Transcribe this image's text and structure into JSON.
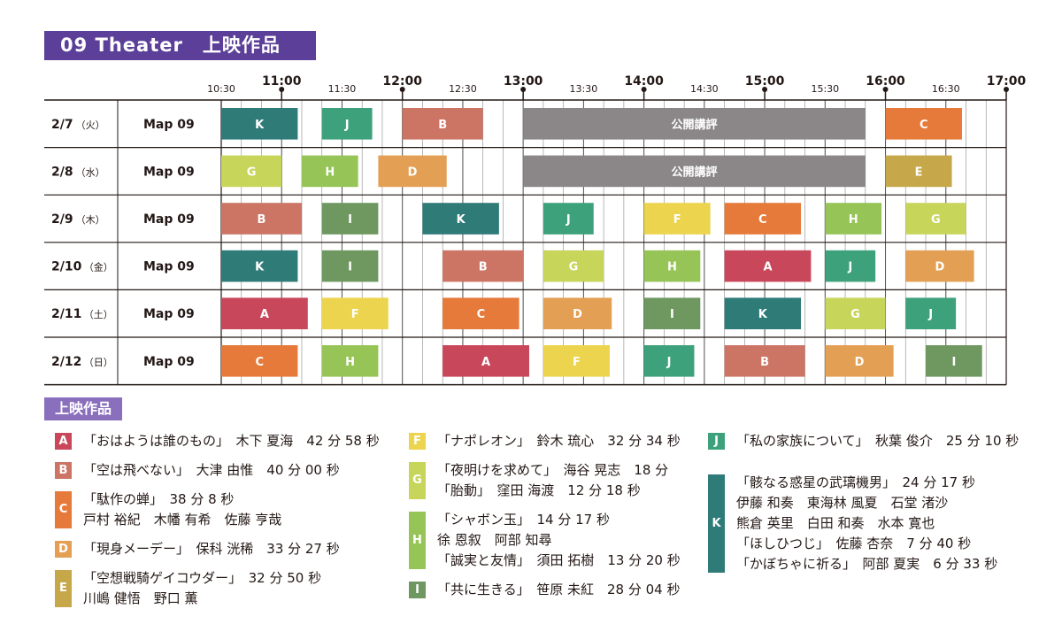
{
  "header": {
    "title": "09 Theater　上映作品"
  },
  "timeline": {
    "ticks": [
      {
        "label": "10:30",
        "major": false
      },
      {
        "label": "11:00",
        "major": true
      },
      {
        "label": "11:30",
        "major": false
      },
      {
        "label": "12:00",
        "major": true
      },
      {
        "label": "12:30",
        "major": false
      },
      {
        "label": "13:00",
        "major": true
      },
      {
        "label": "13:30",
        "major": false
      },
      {
        "label": "14:00",
        "major": true
      },
      {
        "label": "14:30",
        "major": false
      },
      {
        "label": "15:00",
        "major": true
      },
      {
        "label": "15:30",
        "major": false
      },
      {
        "label": "16:00",
        "major": true
      },
      {
        "label": "16:30",
        "major": false
      },
      {
        "label": "17:00",
        "major": true
      }
    ]
  },
  "colors": {
    "A": "#c8475a",
    "B": "#cc7564",
    "C": "#e57a3a",
    "D": "#e3a055",
    "E": "#c6a74a",
    "F": "#ecd44e",
    "G": "#c7d55a",
    "H": "#96c457",
    "I": "#6e9860",
    "J": "#3da27b",
    "K": "#2f7b78",
    "review": "#8b8788"
  },
  "days": [
    {
      "date": "2/7",
      "dow": "（火）",
      "venue": "Map 09",
      "blocks": [
        {
          "label": "K",
          "start": "10:30",
          "end": "11:08"
        },
        {
          "label": "J",
          "start": "11:20",
          "end": "11:45"
        },
        {
          "label": "B",
          "start": "12:00",
          "end": "12:40"
        },
        {
          "label": "公開講評",
          "start": "13:00",
          "end": "15:50",
          "color": "review"
        },
        {
          "label": "C",
          "start": "16:00",
          "end": "16:38"
        }
      ]
    },
    {
      "date": "2/8",
      "dow": "（水）",
      "venue": "Map 09",
      "blocks": [
        {
          "label": "G",
          "start": "10:30",
          "end": "11:00"
        },
        {
          "label": "H",
          "start": "11:10",
          "end": "11:38"
        },
        {
          "label": "D",
          "start": "11:48",
          "end": "12:22"
        },
        {
          "label": "公開講評",
          "start": "13:00",
          "end": "15:50",
          "color": "review"
        },
        {
          "label": "E",
          "start": "16:00",
          "end": "16:33"
        }
      ]
    },
    {
      "date": "2/9",
      "dow": "（木）",
      "venue": "Map 09",
      "blocks": [
        {
          "label": "B",
          "start": "10:30",
          "end": "11:10"
        },
        {
          "label": "I",
          "start": "11:20",
          "end": "11:48"
        },
        {
          "label": "K",
          "start": "12:10",
          "end": "12:48"
        },
        {
          "label": "J",
          "start": "13:10",
          "end": "13:35"
        },
        {
          "label": "F",
          "start": "13:60",
          "end": "14:33"
        },
        {
          "label": "C",
          "start": "14:40",
          "end": "15:18"
        },
        {
          "label": "H",
          "start": "15:30",
          "end": "15:58"
        },
        {
          "label": "G",
          "start": "16:10",
          "end": "16:40"
        }
      ]
    },
    {
      "date": "2/10",
      "dow": "（金）",
      "venue": "Map 09",
      "blocks": [
        {
          "label": "K",
          "start": "10:30",
          "end": "11:08"
        },
        {
          "label": "I",
          "start": "11:20",
          "end": "11:48"
        },
        {
          "label": "B",
          "start": "12:20",
          "end": "13:00"
        },
        {
          "label": "G",
          "start": "13:10",
          "end": "13:40"
        },
        {
          "label": "H",
          "start": "14:00",
          "end": "14:28"
        },
        {
          "label": "A",
          "start": "14:40",
          "end": "15:23"
        },
        {
          "label": "J",
          "start": "15:30",
          "end": "15:55"
        },
        {
          "label": "D",
          "start": "16:10",
          "end": "16:44"
        }
      ]
    },
    {
      "date": "2/11",
      "dow": "（土）",
      "venue": "Map 09",
      "blocks": [
        {
          "label": "A",
          "start": "10:30",
          "end": "11:13"
        },
        {
          "label": "F",
          "start": "11:20",
          "end": "11:53"
        },
        {
          "label": "C",
          "start": "12:20",
          "end": "12:58"
        },
        {
          "label": "D",
          "start": "13:10",
          "end": "13:44"
        },
        {
          "label": "I",
          "start": "14:00",
          "end": "14:28"
        },
        {
          "label": "K",
          "start": "14:40",
          "end": "15:18"
        },
        {
          "label": "G",
          "start": "15:30",
          "end": "16:00"
        },
        {
          "label": "J",
          "start": "16:10",
          "end": "16:35"
        }
      ]
    },
    {
      "date": "2/12",
      "dow": "（日）",
      "venue": "Map 09",
      "blocks": [
        {
          "label": "C",
          "start": "10:30",
          "end": "11:08"
        },
        {
          "label": "H",
          "start": "11:20",
          "end": "11:48"
        },
        {
          "label": "A",
          "start": "12:20",
          "end": "13:03"
        },
        {
          "label": "F",
          "start": "13:10",
          "end": "13:43"
        },
        {
          "label": "J",
          "start": "14:00",
          "end": "14:25"
        },
        {
          "label": "B",
          "start": "14:40",
          "end": "15:20"
        },
        {
          "label": "D",
          "start": "15:30",
          "end": "16:04"
        },
        {
          "label": "I",
          "start": "16:20",
          "end": "16:48"
        }
      ]
    }
  ],
  "legend": {
    "title": "上映作品",
    "columns": [
      [
        {
          "code": "A",
          "lines": [
            "「おはようは誰のもの」　木下 夏海　42 分 58 秒"
          ]
        },
        {
          "code": "B",
          "lines": [
            "「空は飛べない」　大津 由惟　40 分 00 秒"
          ]
        },
        {
          "code": "C",
          "lines": [
            "「駄作の蝉」　38 分 8 秒",
            "戸村 裕紀　木幡 有希　佐藤 亨哉"
          ]
        },
        {
          "code": "D",
          "lines": [
            "「現身メーデー」　保科 洸稀　33 分 27 秒"
          ]
        },
        {
          "code": "E",
          "lines": [
            "「空想戦騎ゲイコウダー」　32 分 50 秒",
            "川嶋 健悟　野口 薫"
          ]
        }
      ],
      [
        {
          "code": "F",
          "lines": [
            "「ナポレオン」　鈴木 琉心　32 分 34 秒"
          ]
        },
        {
          "code": "G",
          "lines": [
            "「夜明けを求めて」　海谷 晃志　18 分",
            "「胎動」　窪田 海渡　12 分 18 秒"
          ]
        },
        {
          "code": "H",
          "lines": [
            "「シャボン玉」　14 分 17 秒",
            "徐 恩叙　阿部 知尋",
            "「誠実と友情」　須田 拓樹　13 分 20 秒"
          ]
        },
        {
          "code": "I",
          "lines": [
            "「共に生きる」　笹原 未紅　28 分 04 秒"
          ]
        }
      ],
      [
        {
          "code": "J",
          "lines": [
            "「私の家族について」　秋葉 俊介　25 分 10 秒"
          ]
        },
        {
          "code": "K",
          "lines": [
            "「骸なる惑星の武璃機男」　24 分 17 秒",
            "伊藤 和奏　東海林 風夏　石堂 渚沙",
            "熊倉 英里　白田 和奏　水本 寛也",
            "「ほしひつじ」　佐藤 杏奈　7 分 40 秒",
            "「かぼちゃに祈る」　阿部 夏実　6 分 33 秒"
          ]
        }
      ]
    ]
  }
}
